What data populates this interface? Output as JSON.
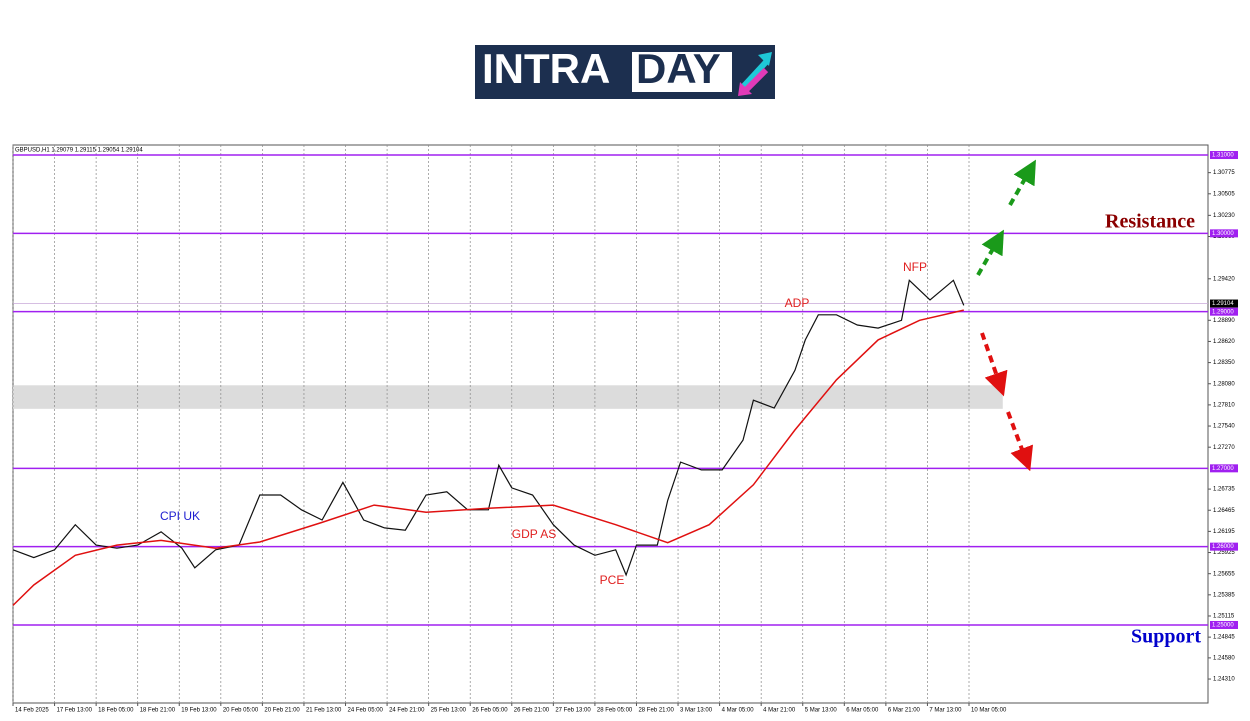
{
  "logo": {
    "left": "INTRA",
    "right": "DAY"
  },
  "chart_data": {
    "type": "line",
    "title": "GBPUSD,H1  1.29079 1.29115 1.29054 1.29104",
    "xlim": [
      0,
      460
    ],
    "ylim": [
      1.24004,
      1.31128
    ],
    "xticks": [
      {
        "value": 0,
        "label": "14 Feb 2025"
      },
      {
        "value": 16,
        "label": "17 Feb 13:00"
      },
      {
        "value": 32,
        "label": "18 Feb 05:00"
      },
      {
        "value": 48,
        "label": "18 Feb 21:00"
      },
      {
        "value": 64,
        "label": "19 Feb 13:00"
      },
      {
        "value": 80,
        "label": "20 Feb 05:00"
      },
      {
        "value": 96,
        "label": "20 Feb 21:00"
      },
      {
        "value": 112,
        "label": "21 Feb 13:00"
      },
      {
        "value": 128,
        "label": "24 Feb 05:00"
      },
      {
        "value": 144,
        "label": "24 Feb 21:00"
      },
      {
        "value": 160,
        "label": "25 Feb 13:00"
      },
      {
        "value": 176,
        "label": "26 Feb 05:00"
      },
      {
        "value": 192,
        "label": "26 Feb 21:00"
      },
      {
        "value": 208,
        "label": "27 Feb 13:00"
      },
      {
        "value": 224,
        "label": "28 Feb 05:00"
      },
      {
        "value": 240,
        "label": "28 Feb 21:00"
      },
      {
        "value": 256,
        "label": "3 Mar 13:00"
      },
      {
        "value": 272,
        "label": "4 Mar 05:00"
      },
      {
        "value": 288,
        "label": "4 Mar 21:00"
      },
      {
        "value": 304,
        "label": "5 Mar 13:00"
      },
      {
        "value": 320,
        "label": "6 Mar 05:00"
      },
      {
        "value": 336,
        "label": "6 Mar 21:00"
      },
      {
        "value": 352,
        "label": "7 Mar 13:00"
      },
      {
        "value": 368,
        "label": "10 Mar 05:00"
      }
    ],
    "yticks": [
      1.30775,
      1.30505,
      {
        "value": 1.3023,
        "label": "1.30230"
      },
      {
        "value": 1.2996,
        "label": "1.29960"
      },
      {
        "value": 1.2942,
        "label": "1.29420"
      },
      {
        "value": 1.2889,
        "label": "1.28890"
      },
      {
        "value": 1.2862,
        "label": "1.28620"
      },
      {
        "value": 1.2835,
        "label": "1.28350"
      },
      {
        "value": 1.2808,
        "label": "1.28080"
      },
      {
        "value": 1.2781,
        "label": "1.27810"
      },
      {
        "value": 1.2754,
        "label": "1.27540"
      },
      {
        "value": 1.2727,
        "label": "1.27270"
      },
      1.26735,
      1.26465,
      1.26195,
      1.25925,
      1.25655,
      1.25385,
      1.25115,
      1.24845,
      {
        "value": 1.2458,
        "label": "1.24580"
      },
      {
        "value": 1.2431,
        "label": "1.24310"
      }
    ],
    "levels": [
      {
        "value": 1.31,
        "label": "1.31000"
      },
      {
        "value": 1.3,
        "label": "1.30000"
      },
      {
        "value": 1.29,
        "label": "1.29000"
      },
      {
        "value": 1.27,
        "label": "1.27000"
      },
      {
        "value": 1.26,
        "label": "1.26000"
      },
      {
        "value": 1.25,
        "label": "1.25000"
      }
    ],
    "level_color": "#a020f0",
    "current_price": 1.29104,
    "zone": [
      1.2776,
      1.2806
    ],
    "zone_end": 381,
    "grid": true,
    "series": [
      {
        "color": "#111111",
        "x": [
          0,
          8,
          16,
          24,
          32,
          40,
          48,
          57,
          65,
          70,
          78,
          87,
          95,
          103,
          111,
          119,
          127,
          135,
          143,
          151,
          159,
          167,
          175,
          183,
          187,
          192,
          200,
          208,
          216,
          224,
          232,
          236,
          240,
          248,
          252,
          257,
          265,
          273,
          281,
          285,
          293,
          301,
          305,
          310,
          317,
          325,
          333,
          342,
          345,
          353,
          362,
          366
        ],
        "values": [
          1.2596,
          1.2586,
          1.2596,
          1.2628,
          1.2602,
          1.2598,
          1.2602,
          1.2619,
          1.2598,
          1.2573,
          1.2596,
          1.2602,
          1.2666,
          1.2666,
          1.2647,
          1.2634,
          1.2682,
          1.2634,
          1.2624,
          1.2621,
          1.2666,
          1.267,
          1.2647,
          1.2647,
          1.2704,
          1.2675,
          1.2666,
          1.2628,
          1.2602,
          1.2589,
          1.2596,
          1.2564,
          1.2602,
          1.2602,
          1.2659,
          1.2708,
          1.2698,
          1.2698,
          1.2736,
          1.2787,
          1.2777,
          1.2825,
          1.2864,
          1.2896,
          1.2896,
          1.2883,
          1.2879,
          1.2889,
          1.294,
          1.2915,
          1.294,
          1.2908
        ]
      },
      {
        "color": "#e01010",
        "x": [
          0,
          8,
          24,
          40,
          57,
          78,
          95,
          119,
          139,
          159,
          183,
          208,
          232,
          252,
          268,
          285,
          301,
          317,
          333,
          349,
          366
        ],
        "values": [
          1.2525,
          1.2551,
          1.2589,
          1.2602,
          1.2608,
          1.2598,
          1.2606,
          1.2631,
          1.2653,
          1.2644,
          1.2649,
          1.2653,
          1.2628,
          1.2605,
          1.2628,
          1.2679,
          1.2749,
          1.2813,
          1.2864,
          1.2889,
          1.2902
        ]
      }
    ],
    "annotations": [
      {
        "text": "CPI UK",
        "color": "#2020d0"
      },
      {
        "text": "GDP AS",
        "color": "#e02020"
      },
      {
        "text": "PCE",
        "color": "#e02020"
      },
      {
        "text": "ADP",
        "color": "#e02020"
      },
      {
        "text": "NFP",
        "color": "#e02020"
      },
      {
        "text": "Resistance",
        "color": "#8b0000"
      },
      {
        "text": "Support",
        "color": "#0000cc"
      }
    ]
  }
}
